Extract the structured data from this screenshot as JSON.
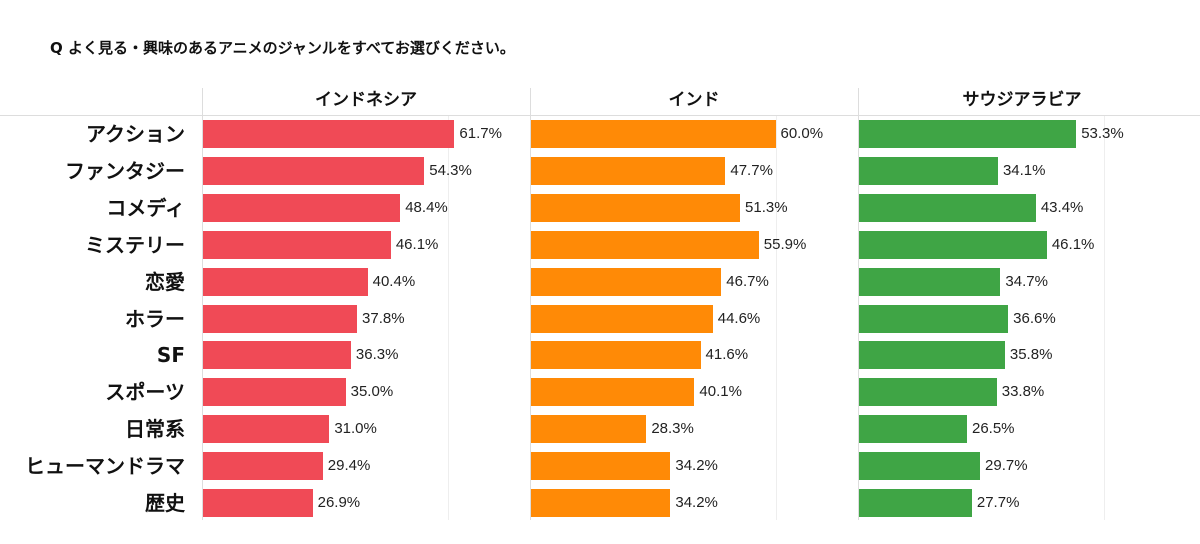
{
  "chart_data": {
    "type": "bar",
    "orientation": "horizontal",
    "title": "Q よく見る・興味のあるアニメのジャンルをすべてお選びください。",
    "categories": [
      "アクション",
      "ファンタジー",
      "コメディ",
      "ミステリー",
      "恋愛",
      "ホラー",
      "SF",
      "スポーツ",
      "日常系",
      "ヒューマンドラマ",
      "歴史"
    ],
    "xlim": [
      0,
      80
    ],
    "grid": "vertical line at 60%",
    "value_format": "percent",
    "series": [
      {
        "name": "インドネシア",
        "color": "#f04a56",
        "values": [
          61.7,
          54.3,
          48.4,
          46.1,
          40.4,
          37.8,
          36.3,
          35.0,
          31.0,
          29.4,
          26.9
        ]
      },
      {
        "name": "インド",
        "color": "#ff8a06",
        "values": [
          60.0,
          47.7,
          51.3,
          55.9,
          46.7,
          44.6,
          41.6,
          40.1,
          28.3,
          34.2,
          34.2
        ]
      },
      {
        "name": "サウジアラビア",
        "color": "#3fa545",
        "values": [
          53.3,
          34.1,
          43.4,
          46.1,
          34.7,
          36.6,
          35.8,
          33.8,
          26.5,
          29.7,
          27.7
        ]
      }
    ]
  }
}
